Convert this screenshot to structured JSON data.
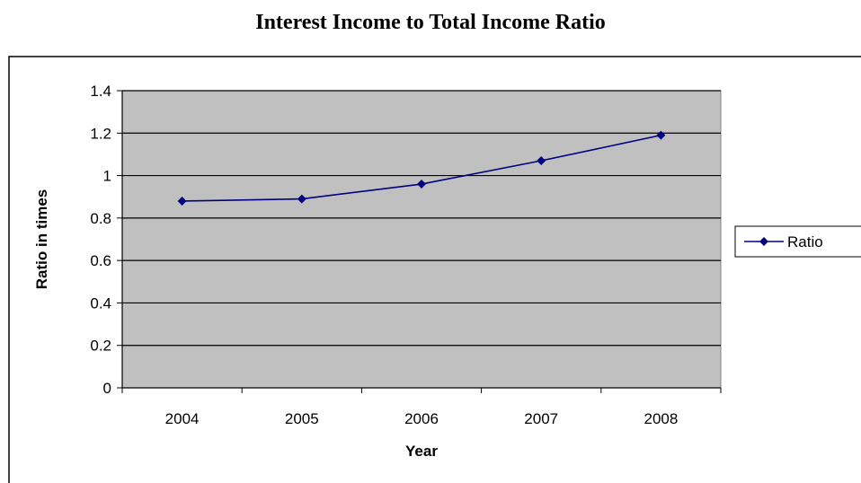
{
  "chart_data": {
    "type": "line",
    "title": "Interest Income to Total Income Ratio",
    "xlabel": "Year",
    "ylabel": "Ratio in times",
    "categories": [
      "2004",
      "2005",
      "2006",
      "2007",
      "2008"
    ],
    "series": [
      {
        "name": "Ratio",
        "values": [
          0.88,
          0.89,
          0.96,
          1.07,
          1.19
        ],
        "color": "#000080"
      }
    ],
    "ylim": [
      0,
      1.4
    ],
    "yticks": [
      "0",
      "0.2",
      "0.4",
      "0.6",
      "0.8",
      "1",
      "1.2",
      "1.4"
    ],
    "grid": true,
    "plot_background": "#C0C0C0",
    "legend_position": "right",
    "marker": "diamond"
  }
}
